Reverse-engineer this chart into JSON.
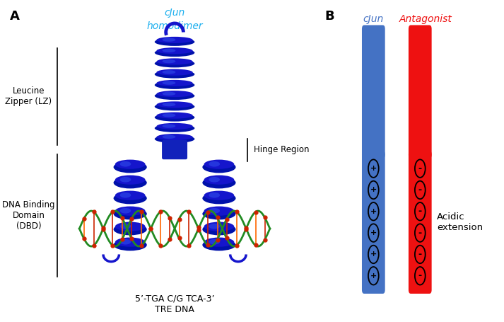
{
  "panel_A_label": "A",
  "panel_B_label": "B",
  "cjun_homodimer_line1": "cJun",
  "cjun_homodimer_line2": "homodimer",
  "cjun_homodimer_color": "#1AAFEF",
  "leucine_zipper_label": "Leucine\nZipper (LZ)",
  "hinge_region_label": "Hinge Region",
  "dna_binding_label": "DNA Binding\nDomain\n(DBD)",
  "tre_dna_label": "5’-TGA C/G TCA-3’\nTRE DNA",
  "cjun_col_label": "cJun",
  "cjun_col_color": "#4472C4",
  "antagonist_col_label": "Antagonist",
  "antagonist_col_color": "#EE1111",
  "acidic_extension_label": "Acidic\nextension",
  "background_color": "#FFFFFF",
  "helix_blue": "#1515CC",
  "helix_blue_mid": "#2233DD",
  "helix_blue_light": "#4466FF",
  "dna_green": "#228B22",
  "dna_orange": "#FF6600",
  "dna_red": "#CC2200",
  "plus_symbol": "+",
  "minus_symbol": "-"
}
